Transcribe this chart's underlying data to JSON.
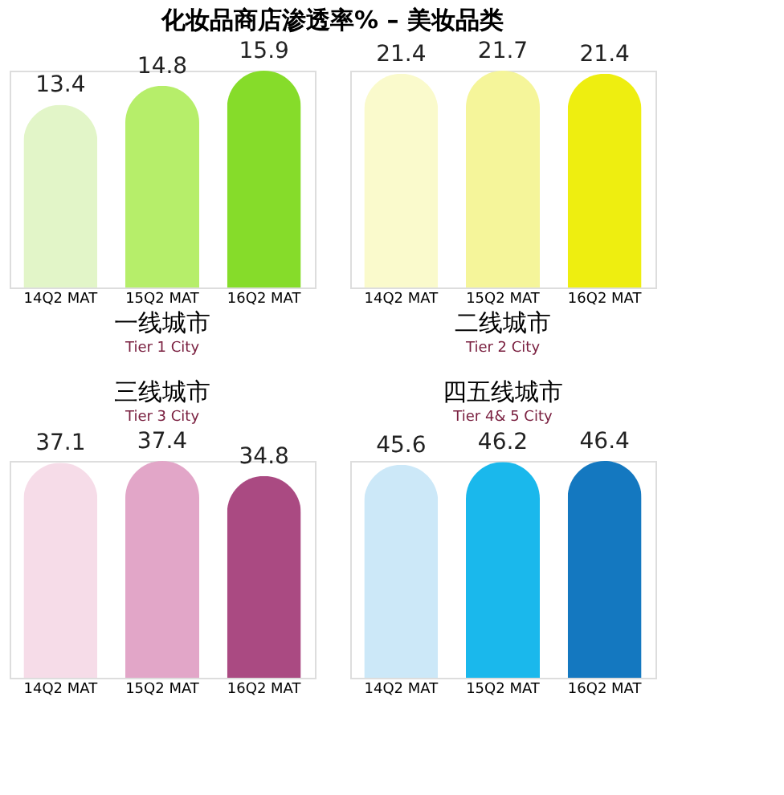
{
  "chart_data": [
    {
      "type": "bar",
      "title": "一线城市",
      "subtitle": "Tier 1 City",
      "annotations": [
        "化妆品商店渗透率% – 美妆品类"
      ],
      "categories": [
        "14Q2  MAT",
        "15Q2  MAT",
        "16Q2 MAT"
      ],
      "values": [
        13.4,
        14.8,
        15.9
      ],
      "colors": [
        "#e2f5c8",
        "#b6ee6a",
        "#86dc2a"
      ],
      "data_labels": true
    },
    {
      "type": "bar",
      "title": "二线城市",
      "subtitle": "Tier 2 City",
      "categories": [
        "14Q2  MAT",
        "15Q2  MAT",
        "16Q2 MAT"
      ],
      "values": [
        21.4,
        21.7,
        21.4
      ],
      "colors": [
        "#fafacc",
        "#f5f59a",
        "#eeee10"
      ],
      "data_labels": true
    },
    {
      "type": "bar",
      "title": "三线城市",
      "subtitle": "Tier 3 City",
      "categories": [
        "14Q2  MAT",
        "15Q2  MAT",
        "16Q2 MAT"
      ],
      "values": [
        37.1,
        37.4,
        34.8
      ],
      "colors": [
        "#f6dce8",
        "#e2a6c8",
        "#aa4a82"
      ],
      "data_labels": true
    },
    {
      "type": "bar",
      "title": "四五线城市",
      "subtitle": "Tier 4& 5 City",
      "categories": [
        "14Q2  MAT",
        "15Q2  MAT",
        "16Q2 MAT"
      ],
      "values": [
        45.6,
        46.2,
        46.4
      ],
      "colors": [
        "#cce8f8",
        "#1ab8ec",
        "#1478c0"
      ],
      "data_labels": true
    }
  ]
}
